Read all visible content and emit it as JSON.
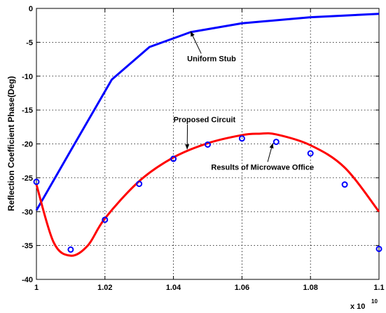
{
  "chart_data": {
    "type": "line",
    "title": "",
    "xlabel": "",
    "ylabel": "Reflection Coefficient Phase(Deg)",
    "x_multiplier_label": "x 10",
    "x_multiplier_exponent": "10",
    "xlim": [
      1.0,
      1.1
    ],
    "ylim": [
      -40,
      0
    ],
    "x_ticks": [
      1.0,
      1.02,
      1.04,
      1.06,
      1.08,
      1.1
    ],
    "x_tick_labels": [
      "1",
      "1.02",
      "1.04",
      "1.06",
      "1.08",
      "1.1"
    ],
    "y_ticks": [
      0,
      -5,
      -10,
      -15,
      -20,
      -25,
      -30,
      -35,
      -40
    ],
    "y_tick_labels": [
      "0",
      "-5",
      "-10",
      "-15",
      "-20",
      "-25",
      "-30",
      "-35",
      "-40"
    ],
    "grid": true,
    "series": [
      {
        "name": "Uniform Stub",
        "style": "line",
        "color": "#0000ff",
        "x": [
          1.0,
          1.01,
          1.022,
          1.033,
          1.045,
          1.06,
          1.08,
          1.1
        ],
        "y": [
          -29.8,
          -21.0,
          -10.5,
          -5.7,
          -3.5,
          -2.2,
          -1.3,
          -0.8
        ]
      },
      {
        "name": "Proposed Circuit",
        "style": "line",
        "color": "#ff0000",
        "x": [
          1.0,
          1.005,
          1.01,
          1.015,
          1.02,
          1.03,
          1.04,
          1.05,
          1.06,
          1.065,
          1.07,
          1.08,
          1.09,
          1.1
        ],
        "y": [
          -26.0,
          -34.5,
          -36.5,
          -35.0,
          -31.0,
          -25.5,
          -22.0,
          -19.9,
          -18.7,
          -18.5,
          -18.6,
          -20.2,
          -23.5,
          -30.0
        ]
      },
      {
        "name": "Results of Microwave Office",
        "style": "markers",
        "color": "#0000ff",
        "x": [
          1.0,
          1.01,
          1.02,
          1.03,
          1.04,
          1.05,
          1.06,
          1.07,
          1.08,
          1.09,
          1.1
        ],
        "y": [
          -25.6,
          -35.6,
          -31.2,
          -25.9,
          -22.2,
          -20.1,
          -19.2,
          -19.7,
          -21.4,
          -26.0,
          -35.5
        ]
      }
    ],
    "annotations": [
      {
        "text": "Uniform Stub",
        "x": 1.044,
        "y": -7.8,
        "arrow_to": [
          1.045,
          -3.4
        ]
      },
      {
        "text": "Proposed Circuit",
        "x": 1.04,
        "y": -16.8,
        "arrow_to": [
          1.044,
          -20.8
        ]
      },
      {
        "text": "Results of Microwave Office",
        "x": 1.051,
        "y": -23.8,
        "arrow_to": [
          1.069,
          -19.9
        ]
      }
    ]
  }
}
